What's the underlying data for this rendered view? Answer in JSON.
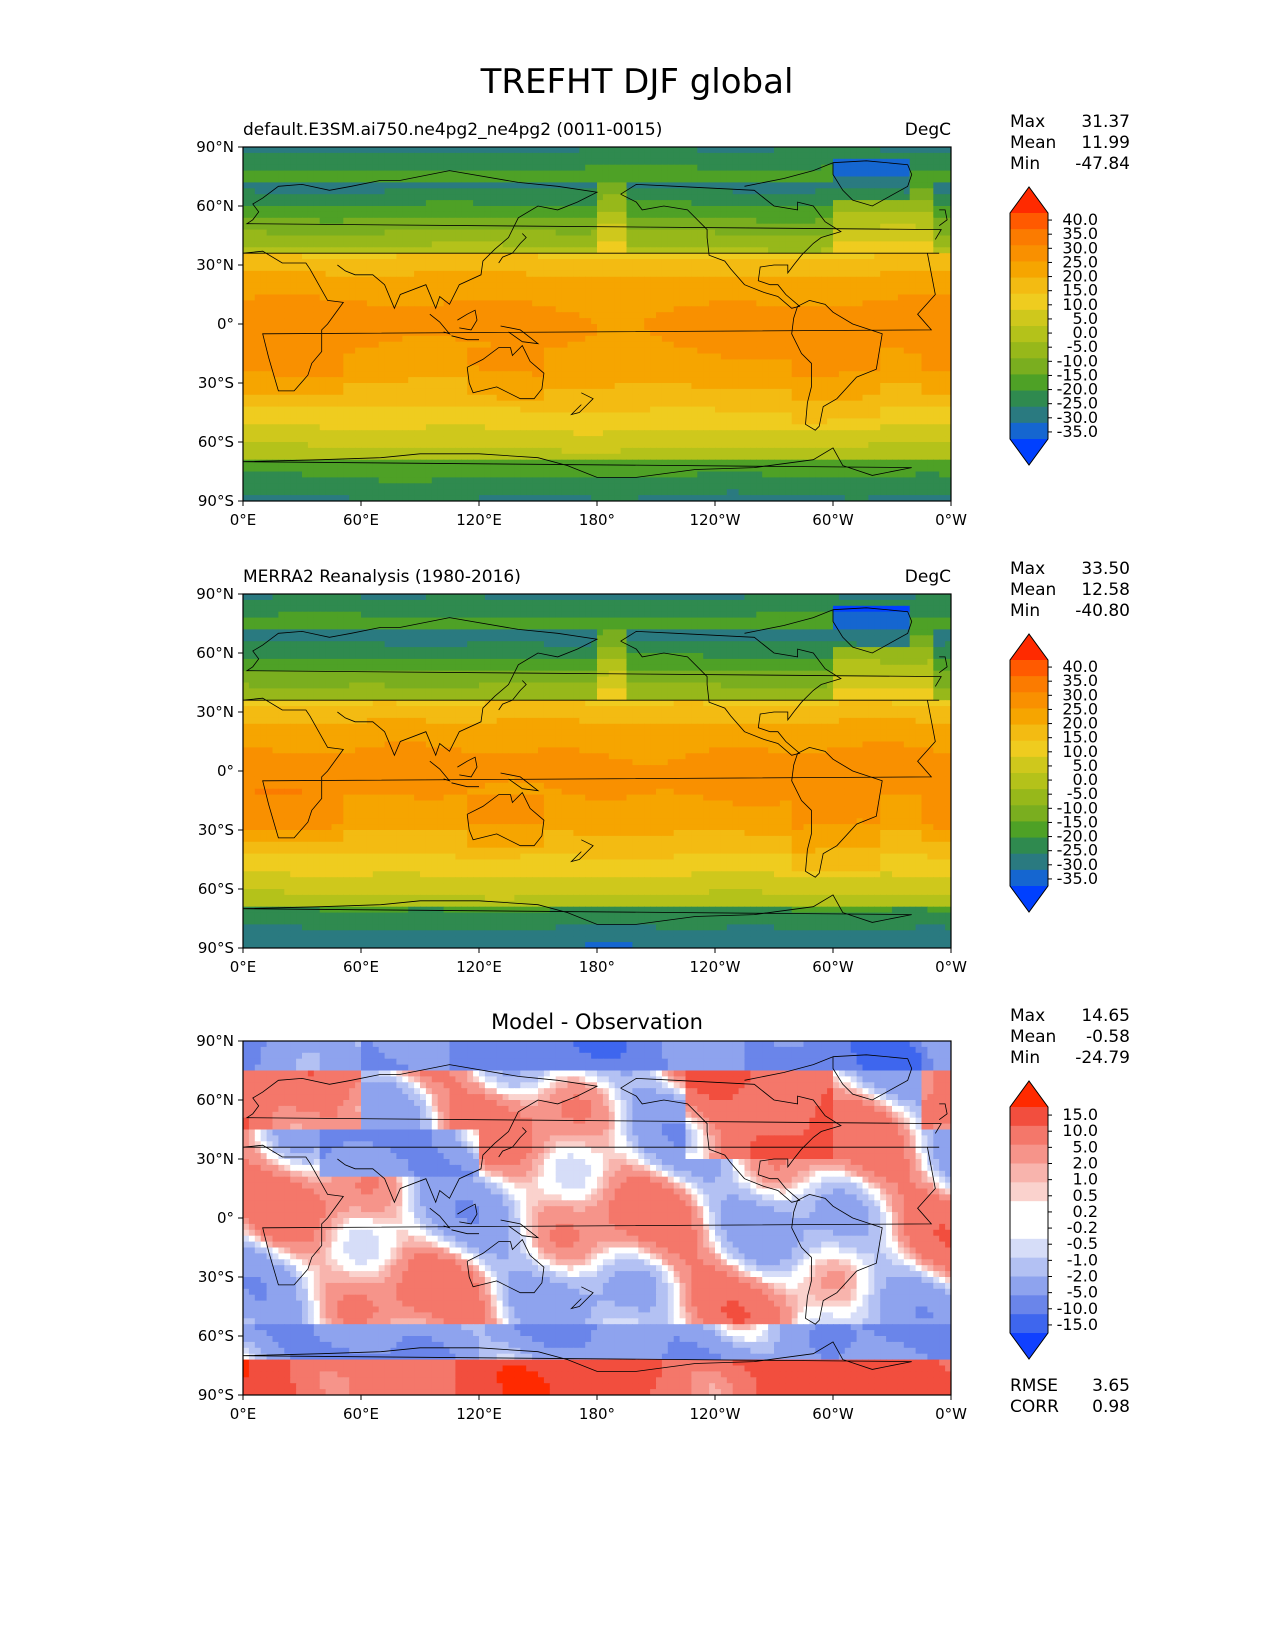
{
  "title": "TREFHT DJF global",
  "x_ticks": [
    "0°E",
    "60°E",
    "120°E",
    "180°",
    "120°W",
    "60°W",
    "0°W"
  ],
  "y_ticks": [
    "90°N",
    "60°N",
    "30°N",
    "0°",
    "30°S",
    "60°S",
    "90°S"
  ],
  "stat_labels": {
    "max": "Max",
    "mean": "Mean",
    "min": "Min",
    "rmse": "RMSE",
    "corr": "CORR"
  },
  "panels": [
    {
      "id": "test",
      "left_title": "default.E3SM.ai750.ne4pg2_ne4pg2 (0011-0015)",
      "center_title": "",
      "units": "DegC",
      "stats": {
        "max": "31.37",
        "mean": "11.99",
        "min": "-47.84"
      },
      "colorbar": {
        "labels": [
          "40.0",
          "35.0",
          "30.0",
          "25.0",
          "20.0",
          "15.0",
          "10.0",
          "5.0",
          "0.0",
          "-5.0",
          "-10.0",
          "-15.0",
          "-20.0",
          "-25.0",
          "-30.0",
          "-35.0"
        ],
        "colors": [
          "#ff2a00",
          "#ff5a00",
          "#fb7b00",
          "#f99000",
          "#f6a500",
          "#f3bb12",
          "#efcc1f",
          "#cfc81c",
          "#b4c21a",
          "#97b81a",
          "#7aae1f",
          "#4ea126",
          "#2f8a4f",
          "#2a7a80",
          "#1566d0",
          "#0040ff"
        ]
      },
      "field": "model"
    },
    {
      "id": "reference",
      "left_title": "MERRA2 Reanalysis (1980-2016)",
      "center_title": "",
      "units": "DegC",
      "stats": {
        "max": "33.50",
        "mean": "12.58",
        "min": "-40.80"
      },
      "colorbar": {
        "labels": [
          "40.0",
          "35.0",
          "30.0",
          "25.0",
          "20.0",
          "15.0",
          "10.0",
          "5.0",
          "0.0",
          "-5.0",
          "-10.0",
          "-15.0",
          "-20.0",
          "-25.0",
          "-30.0",
          "-35.0"
        ],
        "colors": [
          "#ff2a00",
          "#ff5a00",
          "#fb7b00",
          "#f99000",
          "#f6a500",
          "#f3bb12",
          "#efcc1f",
          "#cfc81c",
          "#b4c21a",
          "#97b81a",
          "#7aae1f",
          "#4ea126",
          "#2f8a4f",
          "#2a7a80",
          "#1566d0",
          "#0040ff"
        ]
      },
      "field": "obs"
    },
    {
      "id": "diff",
      "left_title": "",
      "center_title": "Model - Observation",
      "units": "",
      "stats": {
        "max": "14.65",
        "mean": "-0.58",
        "min": "-24.79"
      },
      "extra_stats": {
        "rmse": "3.65",
        "corr": "0.98"
      },
      "colorbar": {
        "labels": [
          "15.0",
          "10.0",
          "5.0",
          "2.0",
          "1.0",
          "0.5",
          "0.2",
          "-0.2",
          "-0.5",
          "-1.0",
          "-2.0",
          "-5.0",
          "-10.0",
          "-15.0"
        ],
        "colors": [
          "#ff2a00",
          "#f24e3e",
          "#f4776a",
          "#f6948a",
          "#f8b4ad",
          "#fad2cd",
          "#ffffff",
          "#ffffff",
          "#d6ddf8",
          "#b3c1f3",
          "#8ea3ee",
          "#6a85ea",
          "#3e66ee",
          "#1040ff"
        ]
      },
      "field": "diff"
    }
  ]
}
